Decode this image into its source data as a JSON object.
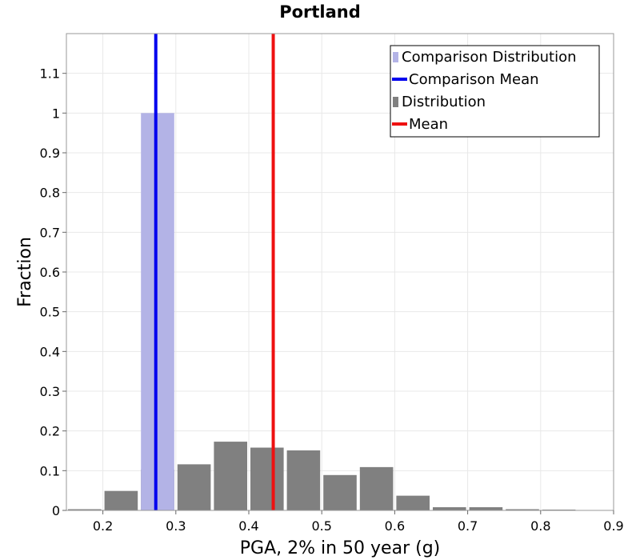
{
  "chart_data": {
    "type": "bar",
    "title": "Portland",
    "xlabel": "PGA, 2% in 50 year (g)",
    "ylabel": "Fraction",
    "xlim": [
      0.15,
      0.9
    ],
    "ylim": [
      0,
      1.2
    ],
    "xticks": [
      "0.2",
      "0.3",
      "0.4",
      "0.5",
      "0.6",
      "0.7",
      "0.8",
      "0.9"
    ],
    "yticks": [
      "0",
      "0.1",
      "0.2",
      "0.3",
      "0.4",
      "0.5",
      "0.6",
      "0.7",
      "0.8",
      "0.9",
      "1",
      "1.1"
    ],
    "grid": true,
    "legend_position": "top-right",
    "bin_width": 0.05,
    "series": [
      {
        "name": "Distribution",
        "kind": "bars",
        "color": "#808080",
        "bin_centers": [
          0.175,
          0.225,
          0.275,
          0.325,
          0.375,
          0.425,
          0.475,
          0.525,
          0.575,
          0.625,
          0.675,
          0.725,
          0.775,
          0.825,
          0.875
        ],
        "values": [
          0.003,
          0.049,
          0.103,
          0.116,
          0.173,
          0.158,
          0.151,
          0.089,
          0.109,
          0.037,
          0.008,
          0.008,
          0.003,
          0.002,
          0.001
        ]
      },
      {
        "name": "Comparison Distribution",
        "kind": "bars",
        "color": "#b3b3e6",
        "bin_centers": [
          0.275
        ],
        "values": [
          1.0
        ]
      },
      {
        "name": "Mean",
        "kind": "vline",
        "color": "#ee1111",
        "x": 0.4335
      },
      {
        "name": "Comparison Mean",
        "kind": "vline",
        "color": "#0000ee",
        "x": 0.2725
      }
    ],
    "legend": [
      {
        "label": "Comparison Distribution",
        "kind": "box",
        "color": "#b3b3e6"
      },
      {
        "label": "Comparison Mean",
        "kind": "line",
        "color": "#0000ee"
      },
      {
        "label": "Distribution",
        "kind": "box",
        "color": "#808080"
      },
      {
        "label": "Mean",
        "kind": "line",
        "color": "#ee1111"
      }
    ]
  }
}
